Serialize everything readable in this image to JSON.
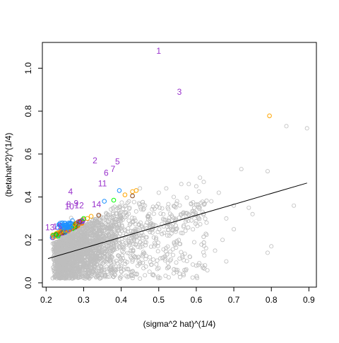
{
  "chart_data": {
    "type": "scatter",
    "title": "",
    "xlabel": "(sigma^2 hat)^(1/4)",
    "ylabel": "(betahat^2)^(1/4)",
    "xlim": [
      0.19,
      0.92
    ],
    "ylim": [
      -0.02,
      1.12
    ],
    "x_ticks": [
      0.2,
      0.3,
      0.4,
      0.5,
      0.6,
      0.7,
      0.8,
      0.9
    ],
    "y_ticks": [
      0.0,
      0.2,
      0.4,
      0.6,
      0.8,
      1.0
    ],
    "x_tick_labels": [
      "0.2",
      "0.3",
      "0.4",
      "0.5",
      "0.6",
      "0.7",
      "0.8",
      "0.9"
    ],
    "y_tick_labels": [
      "0.0",
      "0.2",
      "0.4",
      "0.6",
      "0.8",
      "1.0"
    ],
    "grid": false,
    "legend": "none",
    "background_points": {
      "color": "#bebebe",
      "description_points": [
        [
          0.84,
          0.73
        ],
        [
          0.895,
          0.72
        ],
        [
          0.79,
          0.52
        ],
        [
          0.72,
          0.53
        ],
        [
          0.86,
          0.36
        ],
        [
          0.79,
          0.14
        ],
        [
          0.8,
          0.17
        ],
        [
          0.75,
          0.32
        ],
        [
          0.74,
          0.35
        ],
        [
          0.7,
          0.36
        ],
        [
          0.66,
          0.42
        ],
        [
          0.62,
          0.47
        ],
        [
          0.61,
          0.49
        ],
        [
          0.6,
          0.45
        ],
        [
          0.58,
          0.46
        ],
        [
          0.56,
          0.46
        ],
        [
          0.54,
          0.4
        ],
        [
          0.52,
          0.44
        ],
        [
          0.5,
          0.42
        ],
        [
          0.45,
          0.44
        ],
        [
          0.68,
          0.1
        ],
        [
          0.65,
          0.15
        ],
        [
          0.6,
          0.08
        ],
        [
          0.55,
          0.06
        ],
        [
          0.45,
          0.02
        ],
        [
          0.4,
          0.03
        ],
        [
          0.7,
          0.25
        ],
        [
          0.68,
          0.3
        ],
        [
          0.64,
          0.38
        ],
        [
          0.67,
          0.2
        ]
      ]
    },
    "trend_line": {
      "color": "#000000",
      "x": [
        0.205,
        0.895
      ],
      "y": [
        0.113,
        0.465
      ]
    },
    "highlight_points": [
      {
        "x": 0.795,
        "y": 0.778,
        "color": "#ffa500"
      },
      {
        "x": 0.43,
        "y": 0.425,
        "color": "#ffa500"
      },
      {
        "x": 0.44,
        "y": 0.43,
        "color": "#ffa500"
      },
      {
        "x": 0.41,
        "y": 0.41,
        "color": "#ffa500"
      },
      {
        "x": 0.43,
        "y": 0.405,
        "color": "#8b4513"
      },
      {
        "x": 0.395,
        "y": 0.43,
        "color": "#1e90ff"
      },
      {
        "x": 0.38,
        "y": 0.385,
        "color": "#00ff00"
      },
      {
        "x": 0.355,
        "y": 0.38,
        "color": "#1e90ff"
      },
      {
        "x": 0.34,
        "y": 0.315,
        "color": "#8b4513"
      },
      {
        "x": 0.32,
        "y": 0.31,
        "color": "#ffa500"
      },
      {
        "x": 0.31,
        "y": 0.3,
        "color": "#ffa500"
      },
      {
        "x": 0.3,
        "y": 0.3,
        "color": "#00ff00"
      },
      {
        "x": 0.29,
        "y": 0.285,
        "color": "#8b4513"
      },
      {
        "x": 0.27,
        "y": 0.29,
        "color": "#1e90ff"
      }
    ],
    "labels": {
      "color": "#9932cc",
      "points": [
        {
          "text": "1",
          "x": 0.5,
          "y": 1.08
        },
        {
          "text": "3",
          "x": 0.555,
          "y": 0.89
        },
        {
          "text": "2",
          "x": 0.33,
          "y": 0.57
        },
        {
          "text": "5",
          "x": 0.39,
          "y": 0.565
        },
        {
          "text": "7",
          "x": 0.378,
          "y": 0.53
        },
        {
          "text": "6",
          "x": 0.36,
          "y": 0.512
        },
        {
          "text": "11",
          "x": 0.35,
          "y": 0.463
        },
        {
          "text": "4",
          "x": 0.265,
          "y": 0.425
        },
        {
          "text": "9",
          "x": 0.28,
          "y": 0.37
        },
        {
          "text": "8",
          "x": 0.26,
          "y": 0.365
        },
        {
          "text": "12",
          "x": 0.288,
          "y": 0.36
        },
        {
          "text": "10",
          "x": 0.262,
          "y": 0.355
        },
        {
          "text": "14",
          "x": 0.334,
          "y": 0.365
        },
        {
          "text": "13",
          "x": 0.21,
          "y": 0.258
        },
        {
          "text": "15",
          "x": 0.23,
          "y": 0.262
        }
      ]
    }
  }
}
